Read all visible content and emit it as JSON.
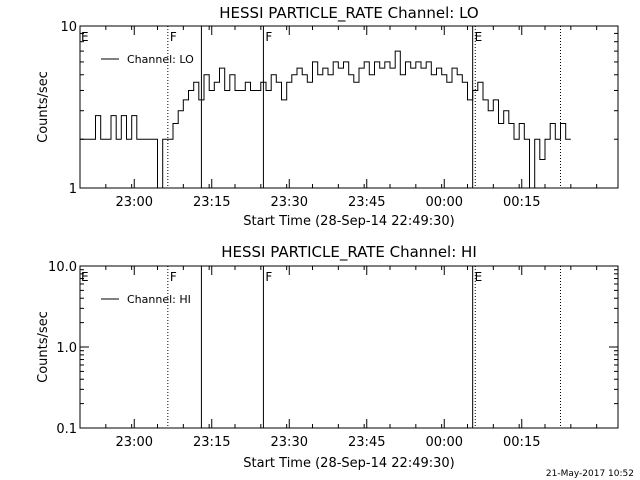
{
  "chart_data": [
    {
      "type": "line",
      "title": "HESSI PARTICLE_RATE Channel: LO",
      "xlabel": "Start Time (28-Sep-14 22:49:30)",
      "ylabel": "Counts/sec",
      "x_unit": "minutes after start time",
      "xlim": [
        0,
        160
      ],
      "x_ticks": [
        10.5,
        25.5,
        40.5,
        55.5,
        70.5,
        85.5
      ],
      "x_tick_labels": [
        "23:00",
        "23:15",
        "23:30",
        "23:45",
        "00:00",
        "00:15"
      ],
      "y_scale": "log",
      "ylim": [
        1,
        10
      ],
      "y_ticks": [
        1,
        10
      ],
      "y_tick_labels": [
        "1",
        "10"
      ],
      "legend": {
        "position": "top-left",
        "entries": [
          "Channel: LO"
        ]
      },
      "series": [
        {
          "name": "Channel: LO",
          "x": [
            0,
            1,
            2,
            3,
            4,
            5,
            6,
            7,
            8,
            9,
            10,
            11,
            12,
            13,
            14,
            15,
            16,
            17,
            18,
            19,
            20,
            21,
            22,
            23,
            24,
            25,
            26,
            27,
            28,
            29,
            30,
            31,
            32,
            33,
            34,
            35,
            36,
            37,
            38,
            39,
            40,
            41,
            42,
            43,
            44,
            45,
            46,
            47,
            48,
            49,
            50,
            51,
            52,
            53,
            54,
            55,
            56,
            57,
            58,
            59,
            60,
            61,
            62,
            63,
            64,
            65,
            66,
            67,
            68,
            69,
            70,
            71,
            72,
            73,
            74,
            75,
            76,
            77,
            78,
            79,
            80,
            81,
            82,
            83,
            84,
            85,
            86,
            87,
            88,
            89,
            90,
            91,
            92,
            93,
            94
          ],
          "y": [
            2,
            2,
            2,
            2.8,
            2,
            2,
            2.8,
            2,
            2.8,
            2,
            2.8,
            2,
            2,
            2,
            2,
            1,
            2,
            2,
            2.5,
            3,
            3.5,
            4,
            4.5,
            3.5,
            5,
            4,
            4.5,
            5.5,
            4,
            5,
            4,
            4,
            4.5,
            4,
            4,
            4.5,
            4,
            5,
            4.5,
            3.5,
            4.5,
            5,
            5.5,
            5,
            4.5,
            6,
            5,
            5.5,
            5,
            6,
            5.5,
            6,
            5,
            4.5,
            5.5,
            6,
            5,
            6,
            5.5,
            6,
            5.5,
            7,
            5,
            6,
            5.5,
            6,
            5.5,
            6,
            5,
            5.5,
            5,
            4.5,
            5.5,
            5,
            4.5,
            3.5,
            4,
            4.5,
            3.5,
            3,
            3.5,
            2.5,
            3,
            2.5,
            2,
            2.5,
            2,
            1,
            2,
            1.5,
            2,
            2.5,
            2,
            2.5,
            2
          ]
        }
      ],
      "markers": [
        {
          "x": 17,
          "label": "F",
          "style": "dotted"
        },
        {
          "x": 23.5,
          "label": "",
          "style": "solid"
        },
        {
          "x": 35.5,
          "label": "F",
          "style": "solid"
        },
        {
          "x": 76,
          "label": "E",
          "style": "solid"
        },
        {
          "x": 76.5,
          "label": "",
          "style": "dotted"
        },
        {
          "x": 93,
          "label": "",
          "style": "dotted"
        },
        {
          "x": 0,
          "label": "E",
          "style": "none"
        }
      ]
    },
    {
      "type": "line",
      "title": "HESSI PARTICLE_RATE Channel: HI",
      "xlabel": "Start Time (28-Sep-14 22:49:30)",
      "ylabel": "Counts/sec",
      "x_unit": "minutes after start time",
      "xlim": [
        0,
        160
      ],
      "x_ticks": [
        10.5,
        25.5,
        40.5,
        55.5,
        70.5,
        85.5
      ],
      "x_tick_labels": [
        "23:00",
        "23:15",
        "23:30",
        "23:45",
        "00:00",
        "00:15"
      ],
      "y_scale": "log",
      "ylim": [
        0.1,
        10
      ],
      "y_ticks": [
        0.1,
        1,
        10
      ],
      "y_tick_labels": [
        "0.1",
        "1.0",
        "10.0"
      ],
      "legend": {
        "position": "top-left",
        "entries": [
          "Channel: HI"
        ]
      },
      "series": [
        {
          "name": "Channel: HI",
          "x": [],
          "y": []
        }
      ],
      "markers": [
        {
          "x": 17,
          "label": "F",
          "style": "dotted"
        },
        {
          "x": 23.5,
          "label": "",
          "style": "solid"
        },
        {
          "x": 35.5,
          "label": "F",
          "style": "solid"
        },
        {
          "x": 76,
          "label": "E",
          "style": "solid"
        },
        {
          "x": 76.5,
          "label": "",
          "style": "dotted"
        },
        {
          "x": 93,
          "label": "",
          "style": "dotted"
        },
        {
          "x": 0,
          "label": "E",
          "style": "none"
        }
      ]
    }
  ],
  "footer": {
    "timestamp": "21-May-2017 10:52"
  }
}
